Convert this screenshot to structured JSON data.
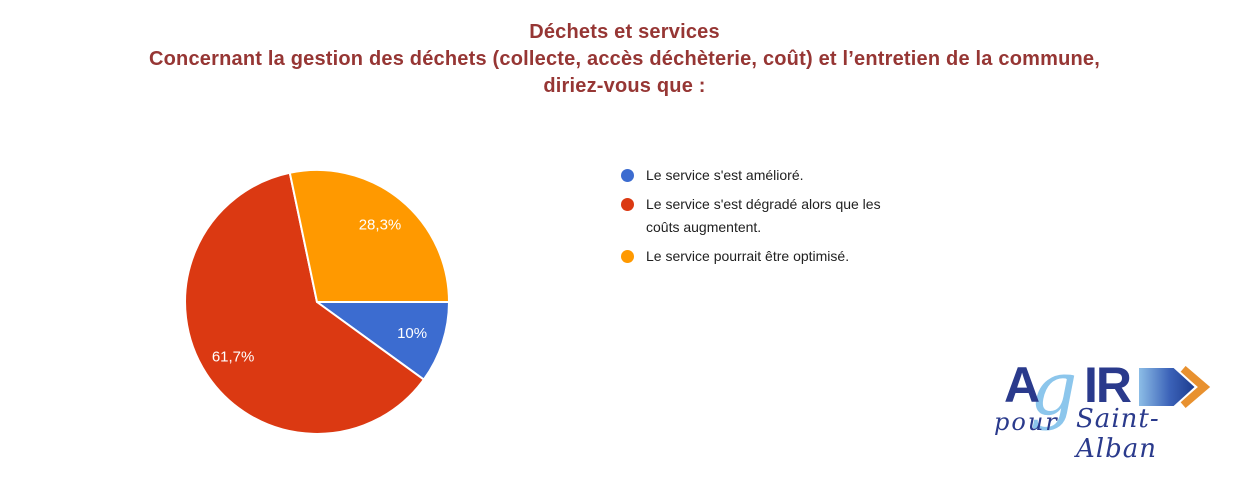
{
  "header": {
    "title": "Déchets et services",
    "subtitle_line1": "Concernant la gestion des déchets (collecte, accès déchèterie, coût) et l’entretien de la commune,",
    "subtitle_line2": "diriez-vous que :",
    "title_color": "#963634"
  },
  "chart_data": {
    "type": "pie",
    "title": "Déchets et services",
    "subtitle": "Concernant la gestion des déchets (collecte, accès déchèterie, coût) et l’entretien de la commune, diriez-vous que :",
    "categories": [
      "Le service s'est amélioré.",
      "Le service s'est dégradé alors que les coûts augmentent.",
      "Le service pourrait être optimisé."
    ],
    "values": [
      10,
      61.7,
      28.3
    ],
    "value_labels": [
      "10%",
      "61,7%",
      "28,3%"
    ],
    "colors": [
      "#3C6CD0",
      "#DB3912",
      "#FF9900"
    ],
    "slice_label_color": "#FFFFFF",
    "start_angle": "east, clockwise",
    "legend_position": "right",
    "grid": false
  },
  "legend": {
    "text_color": "#212121",
    "items": [
      {
        "label": "Le service s'est amélioré."
      },
      {
        "label": "Le service s'est dégradé alors que les coûts augmentent."
      },
      {
        "label": "Le service pourrait être optimisé."
      }
    ]
  },
  "logo": {
    "word_part1": "A",
    "word_g": "g",
    "word_part2": "IR",
    "tagline_left": "pour",
    "tagline_right": "Saint-Alban",
    "navy": "#2A3A8C",
    "light_blue": "#8CC6EC",
    "arrow_orange": "#E8912F"
  }
}
